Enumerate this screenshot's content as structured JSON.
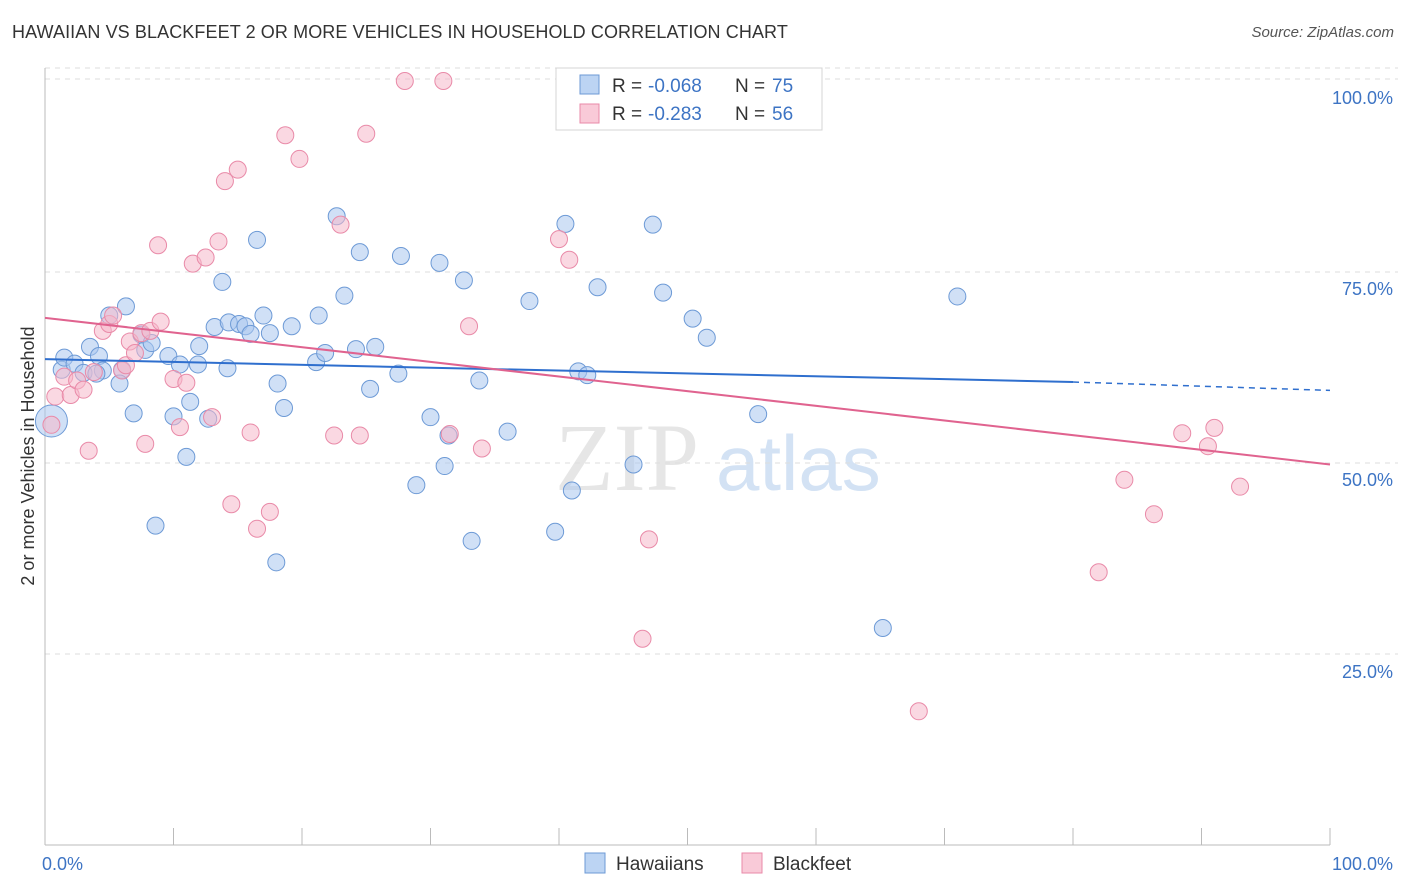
{
  "title": "HAWAIIAN VS BLACKFEET 2 OR MORE VEHICLES IN HOUSEHOLD CORRELATION CHART",
  "source": "Source: ZipAtlas.com",
  "watermark": {
    "zip": "ZIP",
    "atlas": "atlas"
  },
  "colors": {
    "hawaiians_fill": "#a9c6ee",
    "hawaiians_stroke": "#6d9ad6",
    "hawaiians_line": "#2f6fce",
    "blackfeet_fill": "#f6b8cb",
    "blackfeet_stroke": "#e98aa8",
    "blackfeet_line": "#e0638f",
    "tick_text": "#3d74c4",
    "grid": "#dddddd"
  },
  "legend": {
    "rows": [
      {
        "r_label": "R =",
        "r_value": "-0.068",
        "n_label": "N =",
        "n_value": "75"
      },
      {
        "r_label": "R =",
        "r_value": "-0.283",
        "n_label": "N =",
        "n_value": "56"
      }
    ]
  },
  "bottom_legend": [
    "Hawaiians",
    "Blackfeet"
  ],
  "chart_data": {
    "type": "scatter",
    "title": "HAWAIIAN VS BLACKFEET 2 OR MORE VEHICLES IN HOUSEHOLD CORRELATION CHART",
    "ylabel": "2 or more Vehicles in Household",
    "xlabel": "",
    "xlim": [
      0,
      100
    ],
    "ylim": [
      0,
      102
    ],
    "x_tick_labels": [
      "0.0%",
      "100.0%"
    ],
    "y_ticks": [
      25,
      50,
      75,
      100
    ],
    "y_tick_labels": [
      "25.0%",
      "50.0%",
      "75.0%",
      "100.0%"
    ],
    "grid": "horizontal dashed",
    "legend_position": "top-center",
    "series": [
      {
        "name": "Hawaiians",
        "r": -0.068,
        "n": 75,
        "trend": {
          "x0": 0,
          "y0": 63.6,
          "x1": 80,
          "y1": 60.6,
          "dashed_to_x": 100,
          "dashed_to_y": 59.5
        },
        "points": [
          [
            0.5,
            55.5
          ],
          [
            1.3,
            62.2
          ],
          [
            1.5,
            63.8
          ],
          [
            2.3,
            63.0
          ],
          [
            3.0,
            61.8
          ],
          [
            3.5,
            65.2
          ],
          [
            4.2,
            64.0
          ],
          [
            4.5,
            62.1
          ],
          [
            4.0,
            61.7
          ],
          [
            5.0,
            69.3
          ],
          [
            6.0,
            62.2
          ],
          [
            5.8,
            60.4
          ],
          [
            6.3,
            70.5
          ],
          [
            6.9,
            56.5
          ],
          [
            7.5,
            66.8
          ],
          [
            7.8,
            64.8
          ],
          [
            8.3,
            65.7
          ],
          [
            8.6,
            41.8
          ],
          [
            9.6,
            64.0
          ],
          [
            10.0,
            56.1
          ],
          [
            10.5,
            62.9
          ],
          [
            11.0,
            50.8
          ],
          [
            11.3,
            58.0
          ],
          [
            11.9,
            62.9
          ],
          [
            12.0,
            65.3
          ],
          [
            12.7,
            55.8
          ],
          [
            13.2,
            67.8
          ],
          [
            13.8,
            73.7
          ],
          [
            14.2,
            62.4
          ],
          [
            14.3,
            68.4
          ],
          [
            15.1,
            68.2
          ],
          [
            15.6,
            67.9
          ],
          [
            16.0,
            66.9
          ],
          [
            16.5,
            79.2
          ],
          [
            17.0,
            69.3
          ],
          [
            17.5,
            67.0
          ],
          [
            18.1,
            60.4
          ],
          [
            18.6,
            57.2
          ],
          [
            19.2,
            67.9
          ],
          [
            21.3,
            69.3
          ],
          [
            21.1,
            63.2
          ],
          [
            21.8,
            64.4
          ],
          [
            22.7,
            82.3
          ],
          [
            23.3,
            71.9
          ],
          [
            24.2,
            64.9
          ],
          [
            24.5,
            77.6
          ],
          [
            25.3,
            59.7
          ],
          [
            25.7,
            65.2
          ],
          [
            27.5,
            61.7
          ],
          [
            27.7,
            77.1
          ],
          [
            28.9,
            47.1
          ],
          [
            30.0,
            56.0
          ],
          [
            30.7,
            76.2
          ],
          [
            31.1,
            49.6
          ],
          [
            31.4,
            53.6
          ],
          [
            32.6,
            73.9
          ],
          [
            33.2,
            39.8
          ],
          [
            33.8,
            60.8
          ],
          [
            36.0,
            54.1
          ],
          [
            37.7,
            71.2
          ],
          [
            39.7,
            41.0
          ],
          [
            40.5,
            81.3
          ],
          [
            41.0,
            46.4
          ],
          [
            41.5,
            62.0
          ],
          [
            42.2,
            61.5
          ],
          [
            43.0,
            73.0
          ],
          [
            45.8,
            49.8
          ],
          [
            47.3,
            81.2
          ],
          [
            48.1,
            72.3
          ],
          [
            50.4,
            68.9
          ],
          [
            51.5,
            66.4
          ],
          [
            55.5,
            56.4
          ],
          [
            65.2,
            28.4
          ],
          [
            71.0,
            71.8
          ],
          [
            18.0,
            37.0
          ]
        ]
      },
      {
        "name": "Blackfeet",
        "r": -0.283,
        "n": 56,
        "trend": {
          "x0": 0,
          "y0": 69.0,
          "x1": 100,
          "y1": 49.8
        },
        "points": [
          [
            0.5,
            55.0
          ],
          [
            0.8,
            58.7
          ],
          [
            1.5,
            61.3
          ],
          [
            2.0,
            58.9
          ],
          [
            2.5,
            60.8
          ],
          [
            3.0,
            59.6
          ],
          [
            3.4,
            51.6
          ],
          [
            3.8,
            61.9
          ],
          [
            4.5,
            67.3
          ],
          [
            5.0,
            68.2
          ],
          [
            5.3,
            69.3
          ],
          [
            6.0,
            62.1
          ],
          [
            6.3,
            62.8
          ],
          [
            6.6,
            65.9
          ],
          [
            7.0,
            64.4
          ],
          [
            7.5,
            67.0
          ],
          [
            7.8,
            52.5
          ],
          [
            8.2,
            67.3
          ],
          [
            8.8,
            78.5
          ],
          [
            9.0,
            68.5
          ],
          [
            10.0,
            61.0
          ],
          [
            10.5,
            54.7
          ],
          [
            11.5,
            76.1
          ],
          [
            12.5,
            76.9
          ],
          [
            13.0,
            56.0
          ],
          [
            13.5,
            79.0
          ],
          [
            14.0,
            86.9
          ],
          [
            14.5,
            44.6
          ],
          [
            15.0,
            88.4
          ],
          [
            16.0,
            54.0
          ],
          [
            16.5,
            41.4
          ],
          [
            17.5,
            43.6
          ],
          [
            18.7,
            92.9
          ],
          [
            19.8,
            89.8
          ],
          [
            22.5,
            53.6
          ],
          [
            23.0,
            81.2
          ],
          [
            24.5,
            53.6
          ],
          [
            25.0,
            93.1
          ],
          [
            28.0,
            100.0
          ],
          [
            31.0,
            100.0
          ],
          [
            31.5,
            53.8
          ],
          [
            33.0,
            67.9
          ],
          [
            34.0,
            51.9
          ],
          [
            40.0,
            79.3
          ],
          [
            40.8,
            76.6
          ],
          [
            46.5,
            27.0
          ],
          [
            47.0,
            40.0
          ],
          [
            68.0,
            17.5
          ],
          [
            82.0,
            35.7
          ],
          [
            84.0,
            47.8
          ],
          [
            86.3,
            43.3
          ],
          [
            88.5,
            53.9
          ],
          [
            90.5,
            52.2
          ],
          [
            91.0,
            54.6
          ],
          [
            93.0,
            46.9
          ],
          [
            11.0,
            60.5
          ]
        ]
      }
    ]
  }
}
